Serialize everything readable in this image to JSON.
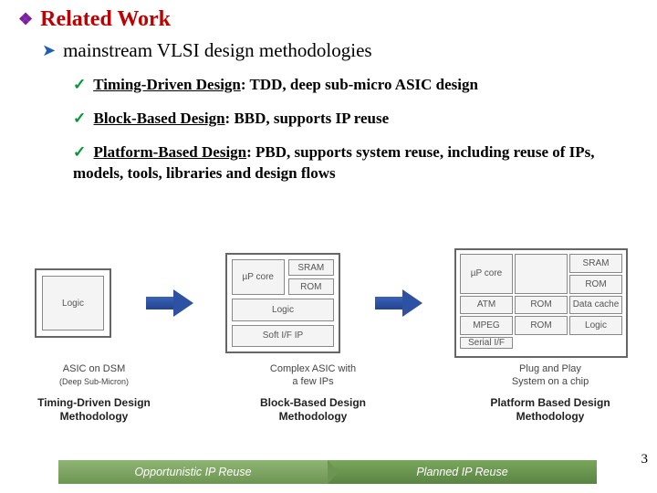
{
  "heading_color": "#c00000",
  "bullet_diamond_color": "#7a1fa2",
  "bullet_arrow_color": "#1a5fb4",
  "check_color": "#009933",
  "title": "Related Work",
  "subtitle": "mainstream VLSI design methodologies",
  "items": [
    {
      "underlined": "Timing-Driven Design",
      "rest": ": TDD,  deep sub-micro ASIC design"
    },
    {
      "underlined": "Block-Based Design",
      "rest": ": BBD, supports IP reuse"
    },
    {
      "underlined": "Platform-Based Design",
      "rest": ": PBD, supports system reuse, including reuse of IPs, models, tools, libraries and design flows"
    }
  ],
  "chip1_blocks": [
    "Logic"
  ],
  "chip1_label_line1": "ASIC on DSM",
  "chip1_label_line2": "(Deep Sub-Micron)",
  "chip2_blocks": {
    "up_core": "µP core",
    "sram": "SRAM",
    "rom": "ROM",
    "logic": "Logic",
    "soft_ip": "Soft I/F IP"
  },
  "chip2_label_line1": "Complex ASIC with",
  "chip2_label_line2": "a few IPs",
  "chip3_blocks": [
    "µP core",
    "SRAM",
    "",
    "",
    "ROM",
    "",
    "ATM",
    "ROM",
    "Data cache",
    "MPEG",
    "ROM",
    "Serial I/F",
    "",
    "",
    "Logic"
  ],
  "chip3_label_line1": "Plug and Play",
  "chip3_label_line2": "System on a chip",
  "method1_line1": "Timing-Driven Design",
  "method2_line1": "Block-Based Design",
  "method3_line1": "Platform Based Design",
  "methodology_word": "Methodology",
  "bottom_left": "Opportunistic IP Reuse",
  "bottom_right": "Planned IP Reuse",
  "page_number": "3",
  "chip_border_color": "#666666",
  "block_bg": "#f4f4f4",
  "block_text_color": "#555555",
  "arrow_color": "#2d52a3",
  "bottom_bar_colors": {
    "seg1_top": "#8fb574",
    "seg1_bot": "#6d9552",
    "seg2_top": "#7aa65c",
    "seg2_bot": "#5a8443"
  }
}
